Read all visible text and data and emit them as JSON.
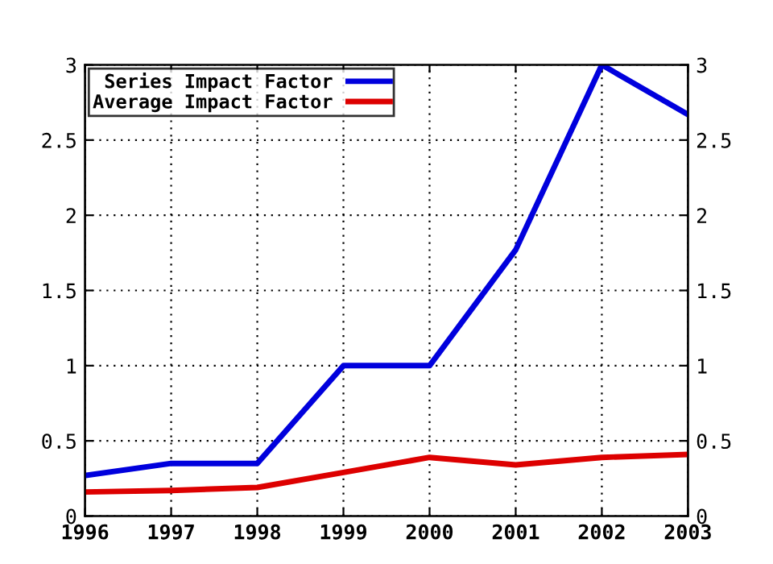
{
  "chart_data": {
    "type": "line",
    "x": [
      1996,
      1997,
      1998,
      1999,
      2000,
      2001,
      2002,
      2003
    ],
    "series": [
      {
        "name": "Series Impact Factor",
        "color": "#0000dd",
        "values": [
          0.27,
          0.35,
          0.35,
          1.0,
          1.0,
          1.77,
          3.0,
          2.67
        ]
      },
      {
        "name": "Average Impact Factor",
        "color": "#dd0000",
        "values": [
          0.16,
          0.17,
          0.19,
          0.29,
          0.39,
          0.34,
          0.39,
          0.41
        ]
      }
    ],
    "xlim": [
      1996,
      2003
    ],
    "xticks": [
      1996,
      1997,
      1998,
      1999,
      2000,
      2001,
      2002,
      2003
    ],
    "ylim": [
      0,
      3
    ],
    "yticks": [
      0,
      0.5,
      1,
      1.5,
      2,
      2.5,
      3
    ],
    "y2lim": [
      0,
      3
    ],
    "y2ticks": [
      0,
      0.5,
      1,
      1.5,
      2,
      2.5,
      3
    ],
    "grid": true,
    "legend": "top left",
    "marker": "none",
    "line_style": "solid"
  }
}
